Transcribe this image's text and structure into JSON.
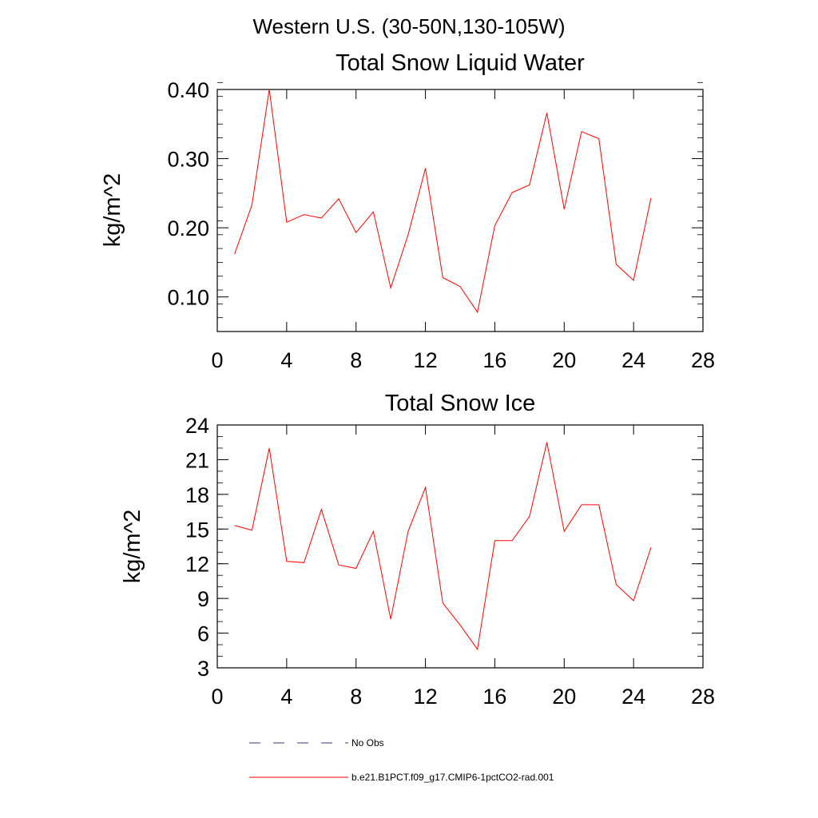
{
  "title": "Western U.S. (30-50N,130-105W)",
  "colors": {
    "series": "#ff0000",
    "axes": "#000000",
    "no_obs": "#3a3a7a"
  },
  "legend": [
    {
      "label": "No Obs",
      "style": "dashed",
      "color": "#3a3a7a"
    },
    {
      "label": "b.e21.B1PCT.f09_g17.CMIP6-1pctCO2-rad.001",
      "style": "solid",
      "color": "#ff0000"
    }
  ],
  "chart_data": [
    {
      "type": "line",
      "title": "Total Snow Liquid Water",
      "xlabel": "",
      "ylabel": "kg/m^2",
      "xlim": [
        0,
        28
      ],
      "ylim": [
        0.05,
        0.4
      ],
      "xticks": [
        0,
        4,
        8,
        12,
        16,
        20,
        24,
        28
      ],
      "xtick_labels": [
        "0",
        "4",
        "8",
        "12",
        "16",
        "20",
        "24",
        "28"
      ],
      "yticks": [
        0.1,
        0.2,
        0.3,
        0.4
      ],
      "ytick_labels": [
        "0.10",
        "0.20",
        "0.30",
        "0.40"
      ],
      "yminor_step": 0.02,
      "x": [
        1,
        2,
        3,
        4,
        5,
        6,
        7,
        8,
        9,
        10,
        11,
        12,
        13,
        14,
        15,
        16,
        17,
        18,
        19,
        20,
        21,
        22,
        23,
        24,
        25
      ],
      "series": [
        {
          "name": "b.e21.B1PCT.f09_g17.CMIP6-1pctCO2-rad.001",
          "color": "#ff0000",
          "values": [
            0.162,
            0.233,
            0.4,
            0.208,
            0.219,
            0.214,
            0.242,
            0.193,
            0.223,
            0.113,
            0.19,
            0.286,
            0.128,
            0.115,
            0.078,
            0.203,
            0.251,
            0.262,
            0.366,
            0.227,
            0.339,
            0.329,
            0.147,
            0.124,
            0.243
          ]
        }
      ],
      "grid": false
    },
    {
      "type": "line",
      "title": "Total Snow Ice",
      "xlabel": "",
      "ylabel": "kg/m^2",
      "xlim": [
        0,
        28
      ],
      "ylim": [
        3,
        24
      ],
      "xticks": [
        0,
        4,
        8,
        12,
        16,
        20,
        24,
        28
      ],
      "xtick_labels": [
        "0",
        "4",
        "8",
        "12",
        "16",
        "20",
        "24",
        "28"
      ],
      "yticks": [
        3,
        6,
        9,
        12,
        15,
        18,
        21,
        24
      ],
      "ytick_labels": [
        "3",
        "6",
        "9",
        "12",
        "15",
        "18",
        "21",
        "24"
      ],
      "yminor_step": 1,
      "x": [
        1,
        2,
        3,
        4,
        5,
        6,
        7,
        8,
        9,
        10,
        11,
        12,
        13,
        14,
        15,
        16,
        17,
        18,
        19,
        20,
        21,
        22,
        23,
        24,
        25
      ],
      "series": [
        {
          "name": "b.e21.B1PCT.f09_g17.CMIP6-1pctCO2-rad.001",
          "color": "#ff0000",
          "values": [
            15.3,
            14.9,
            22.0,
            12.2,
            12.1,
            16.7,
            11.9,
            11.6,
            14.8,
            7.2,
            14.8,
            18.6,
            8.6,
            6.7,
            4.6,
            14.0,
            14.0,
            16.1,
            22.5,
            14.8,
            17.1,
            17.1,
            10.2,
            8.8,
            13.4
          ]
        }
      ],
      "grid": false
    }
  ]
}
